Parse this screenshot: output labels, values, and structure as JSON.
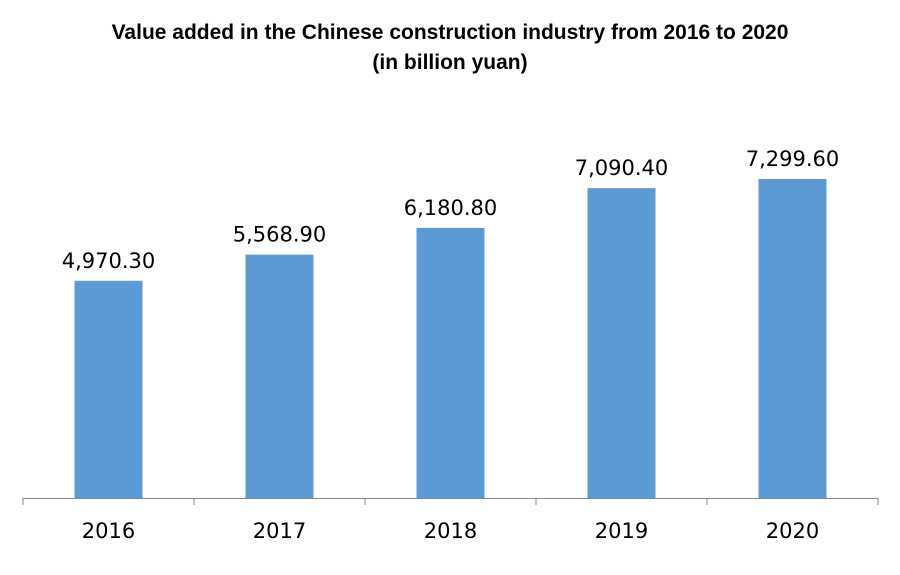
{
  "chart_data": {
    "type": "bar",
    "title": "Value added in the Chinese construction industry from 2016 to 2020",
    "subtitle": "(in billion yuan)",
    "categories": [
      "2016",
      "2017",
      "2018",
      "2019",
      "2020"
    ],
    "values": [
      4970.3,
      5568.9,
      6180.8,
      7090.4,
      7299.6
    ],
    "value_labels": [
      "4,970.30",
      "5,568.90",
      "6,180.80",
      "7,090.40",
      "7,299.60"
    ],
    "xlabel": "",
    "ylabel": "",
    "ylim": [
      0,
      7299.6
    ],
    "grid": false,
    "colors": {
      "bar": "#5b9bd5",
      "axis": "#868686"
    }
  }
}
